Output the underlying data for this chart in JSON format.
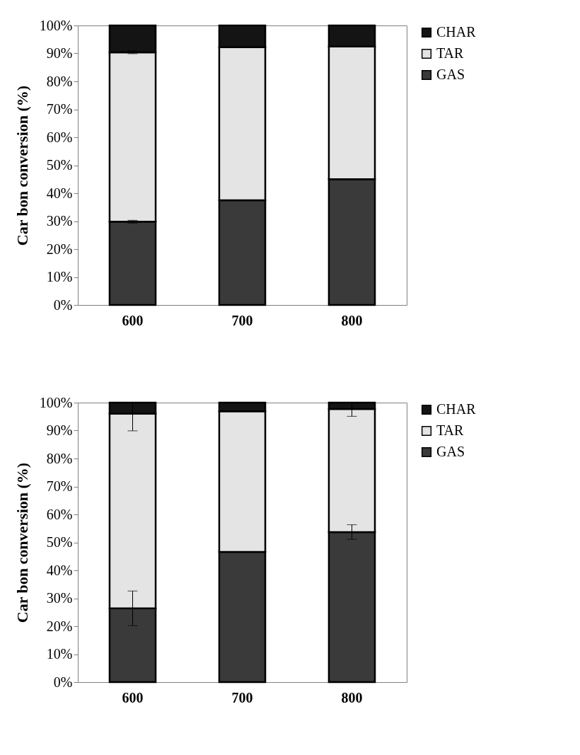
{
  "chart_data": [
    {
      "type": "bar",
      "stacked": true,
      "ylabel": "Car bon conversion (%)",
      "categories": [
        "600",
        "700",
        "800"
      ],
      "series": [
        {
          "name": "GAS",
          "color": "#3a3a3a",
          "values": [
            29.8,
            37.5,
            45.0
          ],
          "errors": [
            0.5,
            null,
            null
          ]
        },
        {
          "name": "TAR",
          "color": "#e4e4e4",
          "values": [
            60.6,
            54.7,
            47.5
          ],
          "errors": [
            0.5,
            null,
            null
          ]
        },
        {
          "name": "CHAR",
          "color": "#141414",
          "values": [
            9.6,
            7.8,
            7.5
          ]
        }
      ],
      "ylim": [
        0,
        100
      ],
      "yticks": [
        {
          "value": 0,
          "label": "0%"
        },
        {
          "value": 10,
          "label": "10%"
        },
        {
          "value": 20,
          "label": "20%"
        },
        {
          "value": 30,
          "label": "30%"
        },
        {
          "value": 40,
          "label": "40%"
        },
        {
          "value": 50,
          "label": "50%"
        },
        {
          "value": 60,
          "label": "60%"
        },
        {
          "value": 70,
          "label": "70%"
        },
        {
          "value": 80,
          "label": "80%"
        },
        {
          "value": 90,
          "label": "90%"
        },
        {
          "value": 100,
          "label": "100%"
        }
      ],
      "grid": false,
      "legend": "right"
    },
    {
      "type": "bar",
      "stacked": true,
      "ylabel": "Car bon conversion (%)",
      "categories": [
        "600",
        "700",
        "800"
      ],
      "series": [
        {
          "name": "GAS",
          "color": "#3a3a3a",
          "values": [
            26.4,
            46.6,
            53.7
          ],
          "errors": [
            6.2,
            null,
            2.6
          ]
        },
        {
          "name": "TAR",
          "color": "#e4e4e4",
          "values": [
            69.7,
            50.3,
            44.0
          ],
          "errors": [
            [
              89.9,
              100
            ],
            null,
            [
              95.1,
              100
            ]
          ]
        },
        {
          "name": "CHAR",
          "color": "#141414",
          "values": [
            3.9,
            3.1,
            2.3
          ]
        }
      ],
      "ylim": [
        0,
        100
      ],
      "yticks": [
        {
          "value": 0,
          "label": "0%"
        },
        {
          "value": 10,
          "label": "10%"
        },
        {
          "value": 20,
          "label": "20%"
        },
        {
          "value": 30,
          "label": "30%"
        },
        {
          "value": 40,
          "label": "40%"
        },
        {
          "value": 50,
          "label": "50%"
        },
        {
          "value": 60,
          "label": "60%"
        },
        {
          "value": 70,
          "label": "70%"
        },
        {
          "value": 80,
          "label": "80%"
        },
        {
          "value": 90,
          "label": "90%"
        },
        {
          "value": 100,
          "label": "100%"
        }
      ],
      "grid": false,
      "legend": "right"
    }
  ]
}
